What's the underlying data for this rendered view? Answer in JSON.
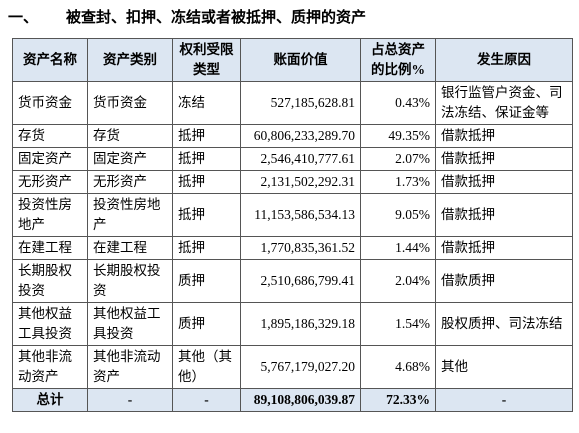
{
  "heading": {
    "number": "一、",
    "title": "被查封、扣押、冻结或者被抵押、质押的资产"
  },
  "table": {
    "columns": [
      "资产名称",
      "资产类别",
      "权利受限类型",
      "账面价值",
      "占总资产的比例%",
      "发生原因"
    ],
    "rows": [
      [
        "货币资金",
        "货币资金",
        "冻结",
        "527,185,628.81",
        "0.43%",
        "银行监管户资金、司法冻结、保证金等"
      ],
      [
        "存货",
        "存货",
        "抵押",
        "60,806,233,289.70",
        "49.35%",
        "借款抵押"
      ],
      [
        "固定资产",
        "固定资产",
        "抵押",
        "2,546,410,777.61",
        "2.07%",
        "借款抵押"
      ],
      [
        "无形资产",
        "无形资产",
        "抵押",
        "2,131,502,292.31",
        "1.73%",
        "借款抵押"
      ],
      [
        "投资性房地产",
        "投资性房地产",
        "抵押",
        "11,153,586,534.13",
        "9.05%",
        "借款抵押"
      ],
      [
        "在建工程",
        "在建工程",
        "抵押",
        "1,770,835,361.52",
        "1.44%",
        "借款抵押"
      ],
      [
        "长期股权投资",
        "长期股权投资",
        "质押",
        "2,510,686,799.41",
        "2.04%",
        "借款质押"
      ],
      [
        "其他权益工具投资",
        "其他权益工具投资",
        "质押",
        "1,895,186,329.18",
        "1.54%",
        "股权质押、司法冻结"
      ],
      [
        "其他非流动资产",
        "其他非流动资产",
        "其他（其他）",
        "5,767,179,027.20",
        "4.68%",
        "其他"
      ]
    ],
    "total": [
      "总计",
      "-",
      "-",
      "89,108,806,039.87",
      "72.33%",
      "-"
    ]
  }
}
